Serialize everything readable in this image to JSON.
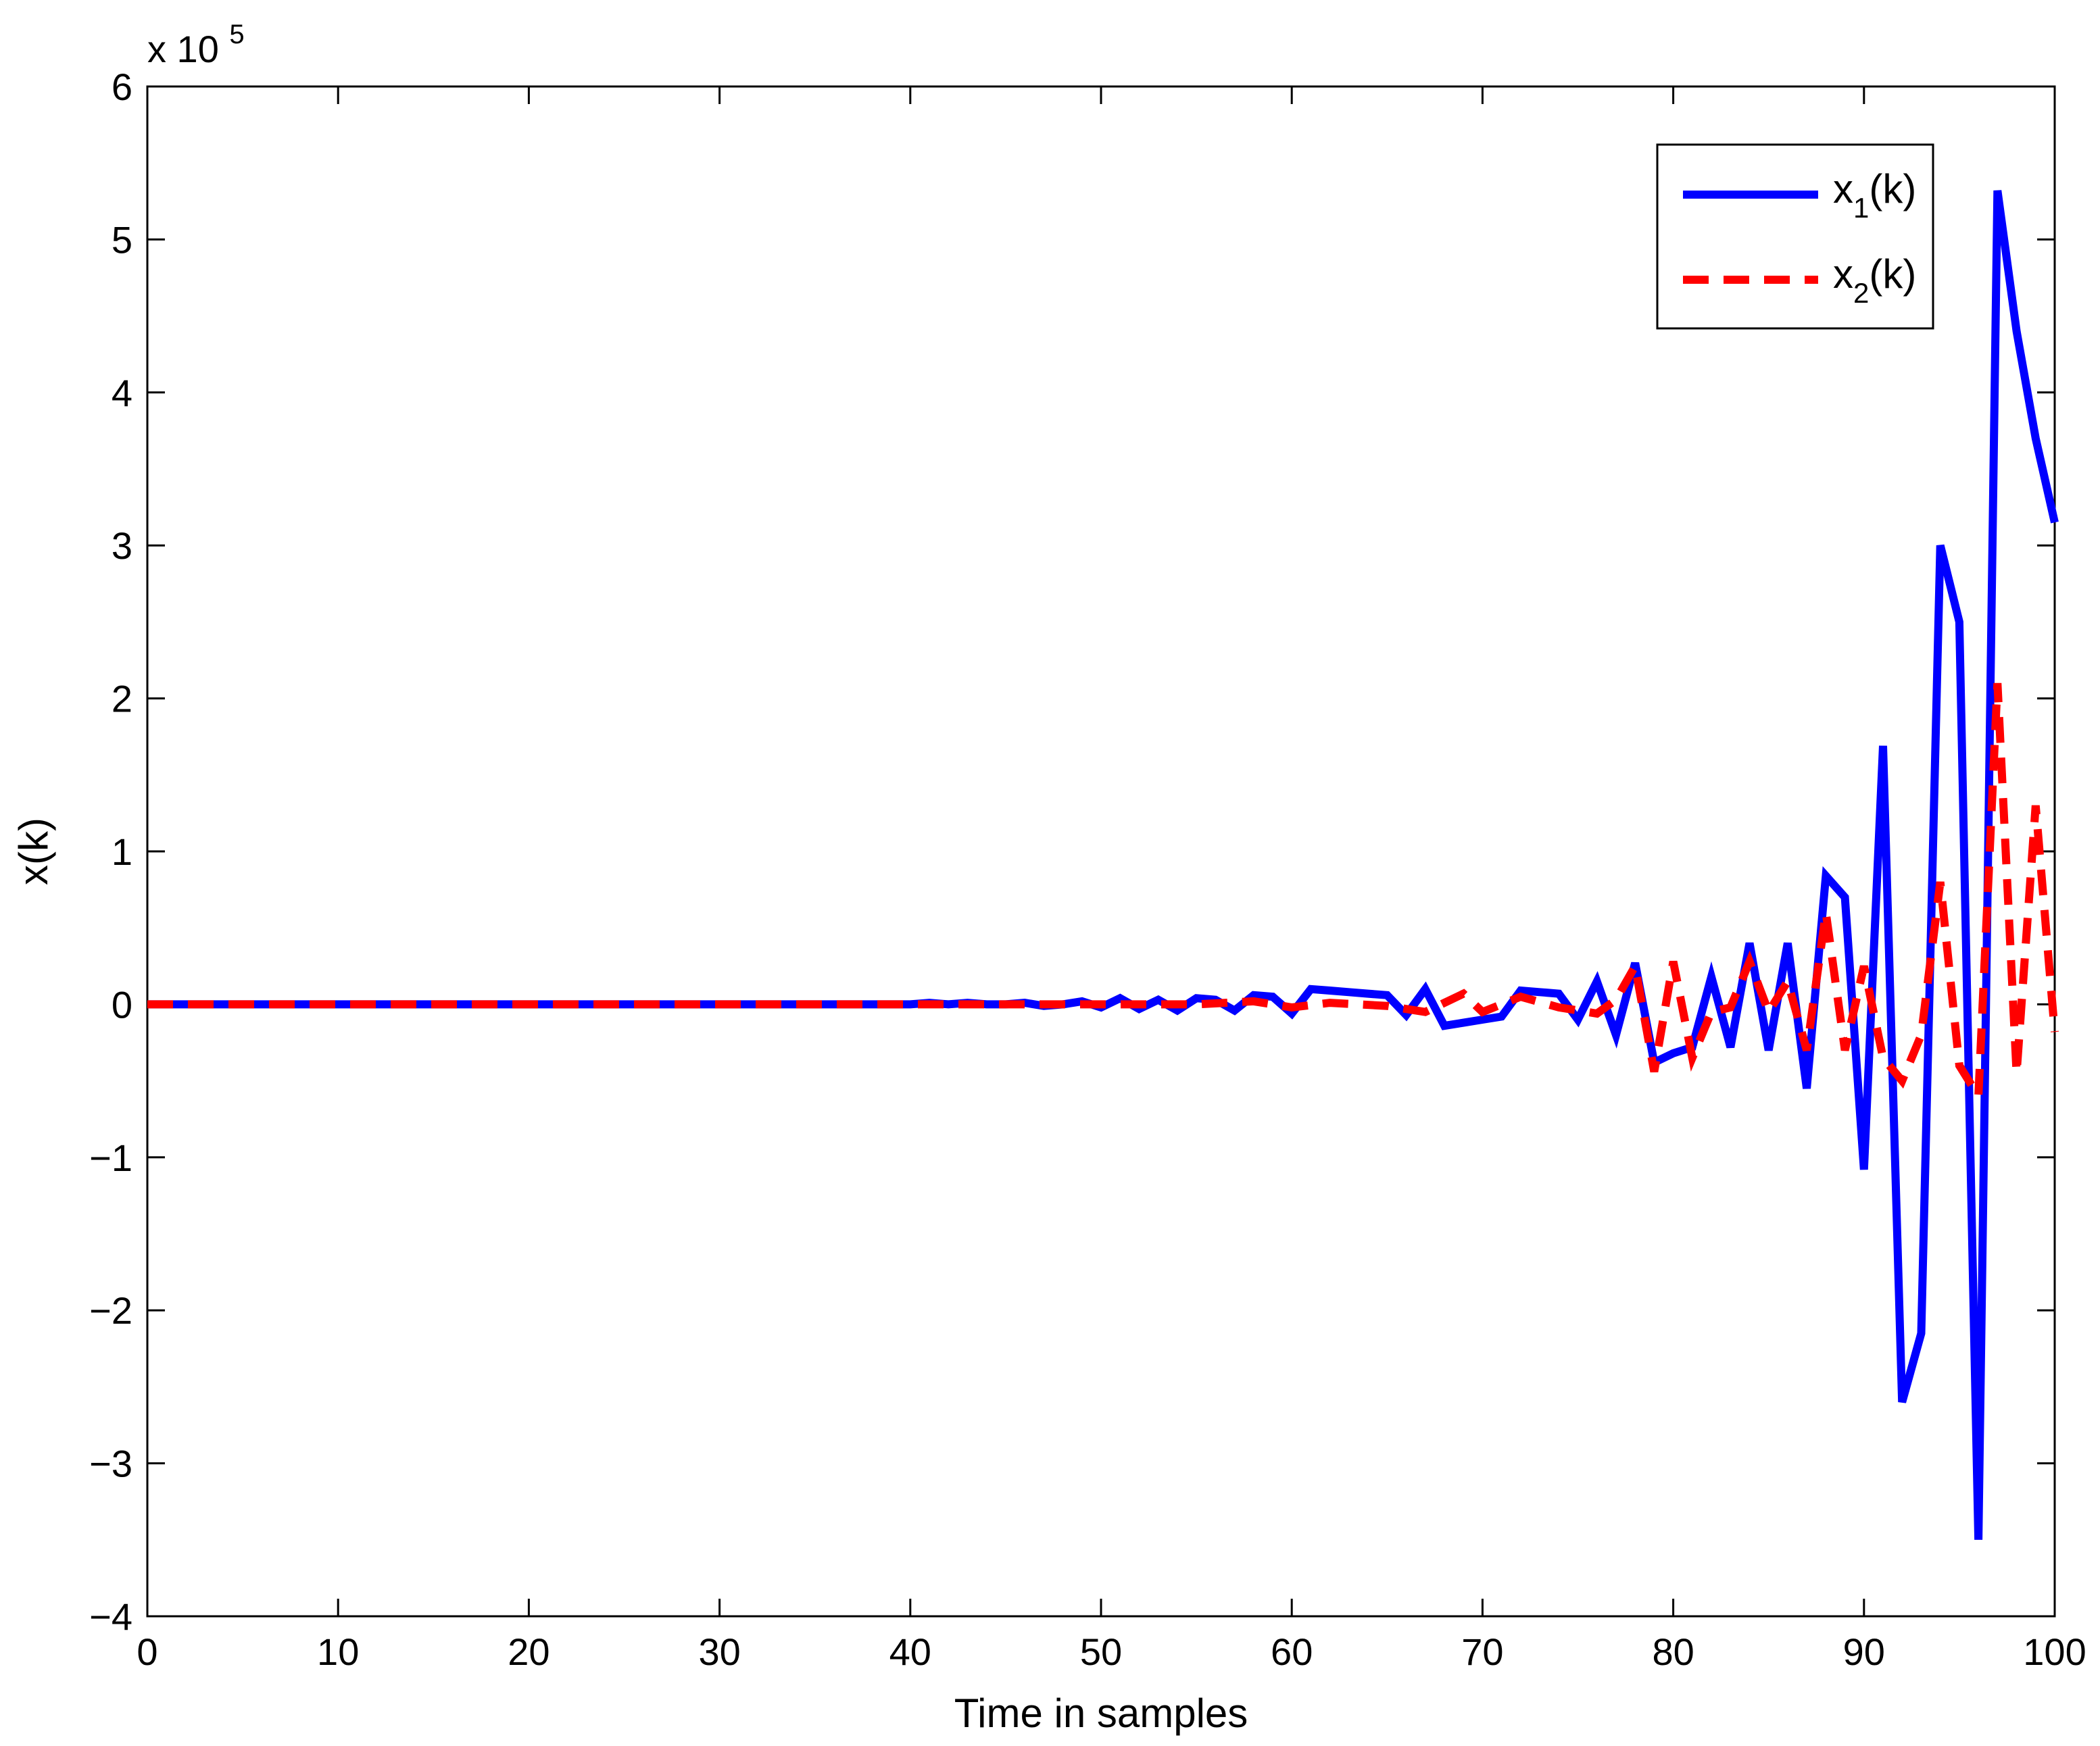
{
  "chart_data": {
    "type": "line",
    "xlabel": "Time in samples",
    "ylabel": "x(k)",
    "y_exponent_label": "x 10",
    "y_exponent_power": "5",
    "xlim": [
      0,
      100
    ],
    "ylim": [
      -4,
      6
    ],
    "y_scale_note": "values in units of 10^5",
    "x_ticks": [
      0,
      10,
      20,
      30,
      40,
      50,
      60,
      70,
      80,
      90,
      100
    ],
    "y_ticks": [
      -4,
      -3,
      -2,
      -1,
      0,
      1,
      2,
      3,
      4,
      5,
      6
    ],
    "x_tick_labels": [
      "0",
      "10",
      "20",
      "30",
      "40",
      "50",
      "60",
      "70",
      "80",
      "90",
      "100"
    ],
    "y_tick_labels": [
      "−4",
      "−3",
      "−2",
      "−1",
      "0",
      "1",
      "2",
      "3",
      "4",
      "5",
      "6"
    ],
    "grid": false,
    "legend_position": "top-right",
    "series": [
      {
        "name": "x1(k)",
        "legend_main": "x",
        "legend_sub": "1",
        "legend_suffix": "(k)",
        "color": "#0000ff",
        "style": "solid",
        "x": [
          0,
          5,
          10,
          15,
          20,
          25,
          30,
          35,
          40,
          41,
          42,
          43,
          44,
          45,
          46,
          47,
          48,
          49,
          50,
          51,
          52,
          53,
          54,
          55,
          56,
          57,
          58,
          59,
          60,
          61,
          62,
          63,
          64,
          65,
          66,
          67,
          68,
          69,
          70,
          71,
          72,
          73,
          74,
          75,
          76,
          77,
          78,
          79,
          80,
          81,
          82,
          83,
          84,
          85,
          86,
          87,
          88,
          89,
          90,
          91,
          92,
          93,
          94,
          95,
          96,
          97,
          98,
          99,
          100
        ],
        "values": [
          0,
          0,
          0,
          0,
          0,
          0,
          0,
          0,
          0,
          0.01,
          0,
          0.01,
          0,
          0,
          0.01,
          -0.01,
          0,
          0.02,
          -0.02,
          0.04,
          -0.03,
          0.03,
          -0.04,
          0.04,
          0.03,
          -0.04,
          0.06,
          0.05,
          -0.06,
          0.1,
          0.09,
          0.08,
          0.07,
          0.06,
          -0.07,
          0.1,
          -0.14,
          -0.12,
          -0.1,
          -0.08,
          0.09,
          0.08,
          0.07,
          -0.1,
          0.15,
          -0.2,
          0.27,
          -0.38,
          -0.32,
          -0.28,
          0.18,
          -0.28,
          0.4,
          -0.3,
          0.4,
          -0.55,
          0.84,
          0.7,
          -1.08,
          1.69,
          -2.6,
          -2.15,
          3.0,
          2.5,
          -3.5,
          5.32,
          4.4,
          3.7,
          3.15
        ]
      },
      {
        "name": "x2(k)",
        "legend_main": "x",
        "legend_sub": "2",
        "legend_suffix": "(k)",
        "color": "#ff0000",
        "style": "dashed",
        "x": [
          0,
          5,
          10,
          15,
          20,
          25,
          30,
          35,
          40,
          45,
          50,
          55,
          58,
          60,
          62,
          65,
          67,
          69,
          70,
          72,
          74,
          76,
          77,
          78,
          79,
          80,
          81,
          82,
          83,
          84,
          85,
          86,
          87,
          88,
          89,
          90,
          91,
          92,
          93,
          94,
          95,
          96,
          97,
          98,
          99,
          100
        ],
        "values": [
          0,
          0,
          0,
          0,
          0,
          0,
          0,
          0,
          0,
          0,
          0,
          0,
          0.02,
          -0.02,
          0.01,
          -0.01,
          -0.05,
          0.07,
          -0.05,
          0.05,
          -0.02,
          -0.06,
          0.03,
          0.25,
          -0.44,
          0.28,
          -0.35,
          -0.05,
          -0.02,
          0.28,
          -0.05,
          0.15,
          -0.3,
          0.6,
          -0.3,
          0.25,
          -0.35,
          -0.5,
          -0.2,
          0.8,
          -0.4,
          -0.6,
          2.1,
          -0.45,
          1.3,
          -0.18
        ]
      }
    ]
  }
}
